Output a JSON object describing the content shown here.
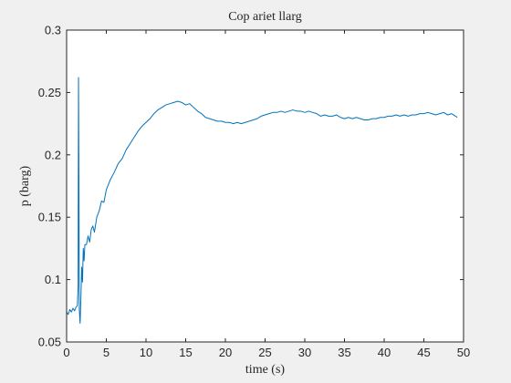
{
  "chart_data": {
    "type": "line",
    "title": "Cop ariet llarg",
    "xlabel": "time (s)",
    "ylabel": "p (barg)",
    "xlim": [
      0,
      50
    ],
    "ylim": [
      0.05,
      0.3
    ],
    "xticks": [
      0,
      5,
      10,
      15,
      20,
      25,
      30,
      35,
      40,
      45,
      50
    ],
    "yticks": [
      0.05,
      0.1,
      0.15,
      0.2,
      0.25,
      0.3
    ],
    "xtick_labels": [
      "0",
      "5",
      "10",
      "15",
      "20",
      "25",
      "30",
      "35",
      "40",
      "45",
      "50"
    ],
    "ytick_labels": [
      "0.05",
      "0.1",
      "0.15",
      "0.2",
      "0.25",
      "0.3"
    ],
    "grid": false,
    "colors": {
      "line": "#0072bd",
      "axes": "#262626",
      "plot_background": "#ffffff",
      "figure_background": "#f0f0f0"
    },
    "series": [
      {
        "x": [
          0,
          0.2,
          0.4,
          0.6,
          0.8,
          1.0,
          1.2,
          1.35,
          1.45,
          1.5,
          1.55,
          1.6,
          1.7,
          1.8,
          1.9,
          2.0,
          2.1,
          2.2,
          2.3,
          2.5,
          2.7,
          2.9,
          3.1,
          3.3,
          3.5,
          3.8,
          4.1,
          4.4,
          4.7,
          5.0,
          5.5,
          6.0,
          6.5,
          7.0,
          7.5,
          8.0,
          8.5,
          9.0,
          9.5,
          10.0,
          10.5,
          11.0,
          11.5,
          12.0,
          12.5,
          13.0,
          13.5,
          14.0,
          14.5,
          15.0,
          15.5,
          16.0,
          16.5,
          17.0,
          17.5,
          18.0,
          18.5,
          19.0,
          19.5,
          20.0,
          20.5,
          21.0,
          21.5,
          22.0,
          22.5,
          23.0,
          23.5,
          24.0,
          24.5,
          25.0,
          25.5,
          26.0,
          26.5,
          27.0,
          27.5,
          28.0,
          28.5,
          29.0,
          29.5,
          30.0,
          30.5,
          31.0,
          31.5,
          32.0,
          32.5,
          33.0,
          33.5,
          34.0,
          34.5,
          35.0,
          35.5,
          36.0,
          36.5,
          37.0,
          37.5,
          38.0,
          38.5,
          39.0,
          39.5,
          40.0,
          40.5,
          41.0,
          41.5,
          42.0,
          42.5,
          43.0,
          43.5,
          44.0,
          44.5,
          45.0,
          45.5,
          46.0,
          46.5,
          47.0,
          47.5,
          48.0,
          48.5,
          49.0,
          49.2
        ],
        "y": [
          0.074,
          0.072,
          0.076,
          0.074,
          0.077,
          0.075,
          0.078,
          0.079,
          0.094,
          0.262,
          0.18,
          0.076,
          0.065,
          0.085,
          0.11,
          0.098,
          0.125,
          0.115,
          0.128,
          0.128,
          0.135,
          0.13,
          0.14,
          0.143,
          0.138,
          0.15,
          0.155,
          0.163,
          0.162,
          0.172,
          0.18,
          0.186,
          0.193,
          0.197,
          0.204,
          0.209,
          0.214,
          0.219,
          0.223,
          0.226,
          0.229,
          0.233,
          0.236,
          0.238,
          0.24,
          0.241,
          0.242,
          0.243,
          0.242,
          0.24,
          0.241,
          0.238,
          0.235,
          0.233,
          0.23,
          0.229,
          0.228,
          0.227,
          0.227,
          0.226,
          0.226,
          0.225,
          0.226,
          0.225,
          0.226,
          0.227,
          0.228,
          0.229,
          0.231,
          0.232,
          0.233,
          0.234,
          0.234,
          0.235,
          0.234,
          0.235,
          0.236,
          0.235,
          0.235,
          0.234,
          0.235,
          0.234,
          0.233,
          0.231,
          0.232,
          0.231,
          0.231,
          0.232,
          0.23,
          0.229,
          0.23,
          0.229,
          0.23,
          0.229,
          0.228,
          0.228,
          0.229,
          0.229,
          0.23,
          0.23,
          0.231,
          0.231,
          0.232,
          0.231,
          0.232,
          0.231,
          0.232,
          0.232,
          0.233,
          0.233,
          0.234,
          0.233,
          0.232,
          0.233,
          0.234,
          0.232,
          0.233,
          0.231,
          0.23
        ]
      }
    ]
  }
}
